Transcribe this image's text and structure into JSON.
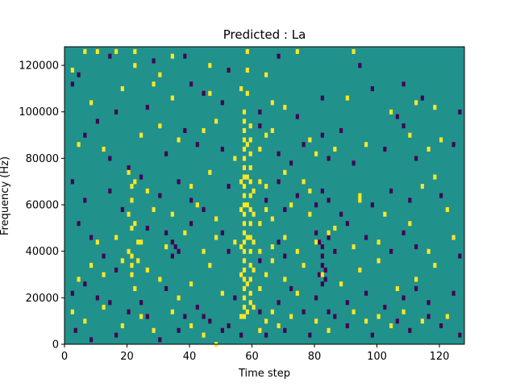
{
  "chart_data": {
    "type": "heatmap",
    "title": "Predicted : La",
    "xlabel": "Time step",
    "ylabel": "Frequency (Hz)",
    "xlim": [
      0,
      128
    ],
    "ylim": [
      0,
      128000
    ],
    "x_ticks": [
      0,
      20,
      40,
      60,
      80,
      100,
      120
    ],
    "y_ticks": [
      0,
      20000,
      40000,
      60000,
      80000,
      100000,
      120000
    ],
    "grid": false,
    "legend": "none",
    "colormap": "viridis",
    "value_levels": [
      -1,
      0,
      1
    ],
    "colors": {
      "background": "#21918c",
      "high": "#fde725",
      "low": "#440154"
    },
    "columns": 128,
    "rows": 128,
    "row_bin_hz": 1000,
    "cells": {
      "high": [
        [
          6,
          126
        ],
        [
          10,
          126
        ],
        [
          16,
          126
        ],
        [
          22,
          126
        ],
        [
          34,
          124
        ],
        [
          58,
          126
        ],
        [
          74,
          126
        ],
        [
          92,
          126
        ],
        [
          2,
          118
        ],
        [
          22,
          120
        ],
        [
          30,
          116
        ],
        [
          46,
          120
        ],
        [
          58,
          118
        ],
        [
          64,
          116
        ],
        [
          8,
          104
        ],
        [
          18,
          110
        ],
        [
          28,
          112
        ],
        [
          34,
          106
        ],
        [
          46,
          108
        ],
        [
          56,
          110
        ],
        [
          58,
          108
        ],
        [
          66,
          104
        ],
        [
          70,
          102
        ],
        [
          90,
          106
        ],
        [
          104,
          100
        ],
        [
          112,
          104
        ],
        [
          118,
          102
        ],
        [
          4,
          86
        ],
        [
          12,
          84
        ],
        [
          24,
          90
        ],
        [
          30,
          94
        ],
        [
          36,
          88
        ],
        [
          44,
          92
        ],
        [
          48,
          96
        ],
        [
          54,
          80
        ],
        [
          58,
          86
        ],
        [
          62,
          84
        ],
        [
          64,
          90
        ],
        [
          66,
          92
        ],
        [
          78,
          88
        ],
        [
          80,
          82
        ],
        [
          86,
          84
        ],
        [
          96,
          86
        ],
        [
          110,
          90
        ],
        [
          116,
          84
        ],
        [
          120,
          88
        ],
        [
          20,
          74
        ],
        [
          22,
          70
        ],
        [
          26,
          66
        ],
        [
          40,
          68
        ],
        [
          46,
          74
        ],
        [
          56,
          70
        ],
        [
          58,
          72
        ],
        [
          60,
          66
        ],
        [
          62,
          70
        ],
        [
          64,
          68
        ],
        [
          70,
          74
        ],
        [
          76,
          70
        ],
        [
          78,
          66
        ],
        [
          94,
          64
        ],
        [
          114,
          68
        ],
        [
          118,
          72
        ],
        [
          20,
          56
        ],
        [
          22,
          52
        ],
        [
          28,
          58
        ],
        [
          34,
          56
        ],
        [
          42,
          60
        ],
        [
          48,
          54
        ],
        [
          56,
          58
        ],
        [
          58,
          60
        ],
        [
          60,
          56
        ],
        [
          62,
          52
        ],
        [
          64,
          58
        ],
        [
          66,
          54
        ],
        [
          72,
          60
        ],
        [
          78,
          56
        ],
        [
          86,
          50
        ],
        [
          94,
          62
        ],
        [
          102,
          56
        ],
        [
          110,
          52
        ],
        [
          122,
          58
        ],
        [
          10,
          44
        ],
        [
          16,
          46
        ],
        [
          20,
          40
        ],
        [
          24,
          44
        ],
        [
          32,
          42
        ],
        [
          38,
          48
        ],
        [
          44,
          40
        ],
        [
          48,
          46
        ],
        [
          54,
          44
        ],
        [
          56,
          42
        ],
        [
          58,
          46
        ],
        [
          60,
          44
        ],
        [
          62,
          40
        ],
        [
          66,
          42
        ],
        [
          70,
          46
        ],
        [
          74,
          40
        ],
        [
          80,
          44
        ],
        [
          84,
          48
        ],
        [
          92,
          42
        ],
        [
          100,
          44
        ],
        [
          116,
          40
        ],
        [
          124,
          46
        ],
        [
          4,
          28
        ],
        [
          8,
          34
        ],
        [
          12,
          30
        ],
        [
          18,
          36
        ],
        [
          22,
          24
        ],
        [
          26,
          32
        ],
        [
          30,
          28
        ],
        [
          36,
          20
        ],
        [
          40,
          26
        ],
        [
          46,
          34
        ],
        [
          50,
          22
        ],
        [
          56,
          30
        ],
        [
          58,
          26
        ],
        [
          60,
          32
        ],
        [
          62,
          24
        ],
        [
          64,
          30
        ],
        [
          66,
          36
        ],
        [
          70,
          28
        ],
        [
          74,
          22
        ],
        [
          76,
          34
        ],
        [
          82,
          30
        ],
        [
          88,
          26
        ],
        [
          94,
          32
        ],
        [
          100,
          36
        ],
        [
          106,
          24
        ],
        [
          112,
          28
        ],
        [
          118,
          34
        ],
        [
          2,
          14
        ],
        [
          6,
          10
        ],
        [
          12,
          16
        ],
        [
          18,
          8
        ],
        [
          24,
          12
        ],
        [
          28,
          6
        ],
        [
          34,
          14
        ],
        [
          40,
          8
        ],
        [
          44,
          4
        ],
        [
          48,
          0
        ],
        [
          56,
          12
        ],
        [
          58,
          14
        ],
        [
          60,
          16
        ],
        [
          62,
          6
        ],
        [
          64,
          10
        ],
        [
          66,
          14
        ],
        [
          68,
          8
        ],
        [
          72,
          12
        ],
        [
          80,
          10
        ],
        [
          84,
          6
        ],
        [
          92,
          14
        ],
        [
          96,
          10
        ],
        [
          100,
          12
        ],
        [
          104,
          8
        ],
        [
          108,
          14
        ],
        [
          114,
          10
        ],
        [
          122,
          12
        ],
        [
          57,
          100
        ],
        [
          57,
          96
        ],
        [
          57,
          92
        ],
        [
          57,
          88
        ],
        [
          57,
          84
        ],
        [
          57,
          80
        ],
        [
          57,
          76
        ],
        [
          57,
          72
        ],
        [
          57,
          68
        ],
        [
          57,
          64
        ],
        [
          57,
          60
        ],
        [
          57,
          56
        ],
        [
          57,
          52
        ],
        [
          57,
          48
        ],
        [
          57,
          44
        ],
        [
          57,
          40
        ],
        [
          57,
          36
        ],
        [
          57,
          32
        ],
        [
          57,
          28
        ],
        [
          57,
          24
        ],
        [
          57,
          20
        ],
        [
          57,
          16
        ],
        [
          57,
          12
        ],
        [
          59,
          94
        ],
        [
          59,
          88
        ],
        [
          59,
          82
        ],
        [
          59,
          76
        ],
        [
          59,
          70
        ],
        [
          59,
          64
        ],
        [
          59,
          58
        ],
        [
          59,
          52
        ],
        [
          59,
          46
        ],
        [
          59,
          40
        ],
        [
          59,
          34
        ],
        [
          59,
          28
        ],
        [
          59,
          22
        ],
        [
          59,
          18
        ],
        [
          21,
          68
        ],
        [
          21,
          62
        ],
        [
          21,
          50
        ],
        [
          21,
          38
        ],
        [
          21,
          34
        ],
        [
          21,
          30
        ],
        [
          23,
          44
        ],
        [
          23,
          36
        ]
      ],
      "low": [
        [
          2,
          112
        ],
        [
          4,
          116
        ],
        [
          14,
          124
        ],
        [
          28,
          122
        ],
        [
          38,
          124
        ],
        [
          52,
          118
        ],
        [
          68,
          124
        ],
        [
          94,
          120
        ],
        [
          10,
          96
        ],
        [
          16,
          100
        ],
        [
          26,
          102
        ],
        [
          40,
          112
        ],
        [
          44,
          108
        ],
        [
          50,
          104
        ],
        [
          62,
          100
        ],
        [
          74,
          98
        ],
        [
          82,
          106
        ],
        [
          98,
          110
        ],
        [
          106,
          98
        ],
        [
          108,
          112
        ],
        [
          114,
          106
        ],
        [
          126,
          100
        ],
        [
          6,
          90
        ],
        [
          14,
          80
        ],
        [
          20,
          76
        ],
        [
          32,
          82
        ],
        [
          38,
          92
        ],
        [
          42,
          86
        ],
        [
          50,
          84
        ],
        [
          62,
          94
        ],
        [
          68,
          82
        ],
        [
          72,
          78
        ],
        [
          76,
          86
        ],
        [
          82,
          90
        ],
        [
          84,
          80
        ],
        [
          88,
          92
        ],
        [
          92,
          78
        ],
        [
          102,
          84
        ],
        [
          108,
          94
        ],
        [
          112,
          80
        ],
        [
          124,
          86
        ],
        [
          2,
          70
        ],
        [
          6,
          62
        ],
        [
          14,
          66
        ],
        [
          18,
          58
        ],
        [
          24,
          72
        ],
        [
          30,
          64
        ],
        [
          36,
          70
        ],
        [
          40,
          62
        ],
        [
          44,
          58
        ],
        [
          52,
          68
        ],
        [
          64,
          62
        ],
        [
          68,
          70
        ],
        [
          70,
          58
        ],
        [
          74,
          64
        ],
        [
          80,
          60
        ],
        [
          82,
          66
        ],
        [
          84,
          62
        ],
        [
          88,
          56
        ],
        [
          98,
          60
        ],
        [
          104,
          66
        ],
        [
          110,
          62
        ],
        [
          120,
          64
        ],
        [
          4,
          52
        ],
        [
          8,
          46
        ],
        [
          12,
          38
        ],
        [
          16,
          32
        ],
        [
          26,
          50
        ],
        [
          32,
          48
        ],
        [
          34,
          44
        ],
        [
          36,
          40
        ],
        [
          40,
          52
        ],
        [
          50,
          48
        ],
        [
          52,
          40
        ],
        [
          62,
          36
        ],
        [
          68,
          44
        ],
        [
          70,
          38
        ],
        [
          80,
          48
        ],
        [
          82,
          42
        ],
        [
          84,
          46
        ],
        [
          86,
          40
        ],
        [
          90,
          52
        ],
        [
          96,
          46
        ],
        [
          104,
          40
        ],
        [
          108,
          48
        ],
        [
          112,
          42
        ],
        [
          126,
          38
        ],
        [
          2,
          22
        ],
        [
          6,
          26
        ],
        [
          10,
          20
        ],
        [
          14,
          18
        ],
        [
          20,
          14
        ],
        [
          24,
          18
        ],
        [
          32,
          24
        ],
        [
          38,
          12
        ],
        [
          42,
          16
        ],
        [
          46,
          10
        ],
        [
          50,
          6
        ],
        [
          54,
          20
        ],
        [
          64,
          4
        ],
        [
          68,
          18
        ],
        [
          72,
          24
        ],
        [
          76,
          14
        ],
        [
          80,
          20
        ],
        [
          82,
          26
        ],
        [
          86,
          12
        ],
        [
          90,
          18
        ],
        [
          96,
          22
        ],
        [
          102,
          16
        ],
        [
          108,
          20
        ],
        [
          112,
          24
        ],
        [
          116,
          18
        ],
        [
          120,
          8
        ],
        [
          124,
          22
        ],
        [
          3,
          6
        ],
        [
          8,
          2
        ],
        [
          16,
          4
        ],
        [
          26,
          12
        ],
        [
          30,
          2
        ],
        [
          36,
          6
        ],
        [
          44,
          12
        ],
        [
          52,
          8
        ],
        [
          56,
          4
        ],
        [
          62,
          14
        ],
        [
          70,
          6
        ],
        [
          78,
          4
        ],
        [
          84,
          14
        ],
        [
          90,
          8
        ],
        [
          98,
          4
        ],
        [
          106,
          10
        ],
        [
          110,
          6
        ],
        [
          116,
          12
        ],
        [
          126,
          4
        ],
        [
          82,
          34
        ],
        [
          82,
          38
        ],
        [
          83,
          32
        ],
        [
          83,
          28
        ],
        [
          81,
          44
        ],
        [
          81,
          30
        ],
        [
          34,
          38
        ],
        [
          35,
          42
        ]
      ]
    }
  }
}
